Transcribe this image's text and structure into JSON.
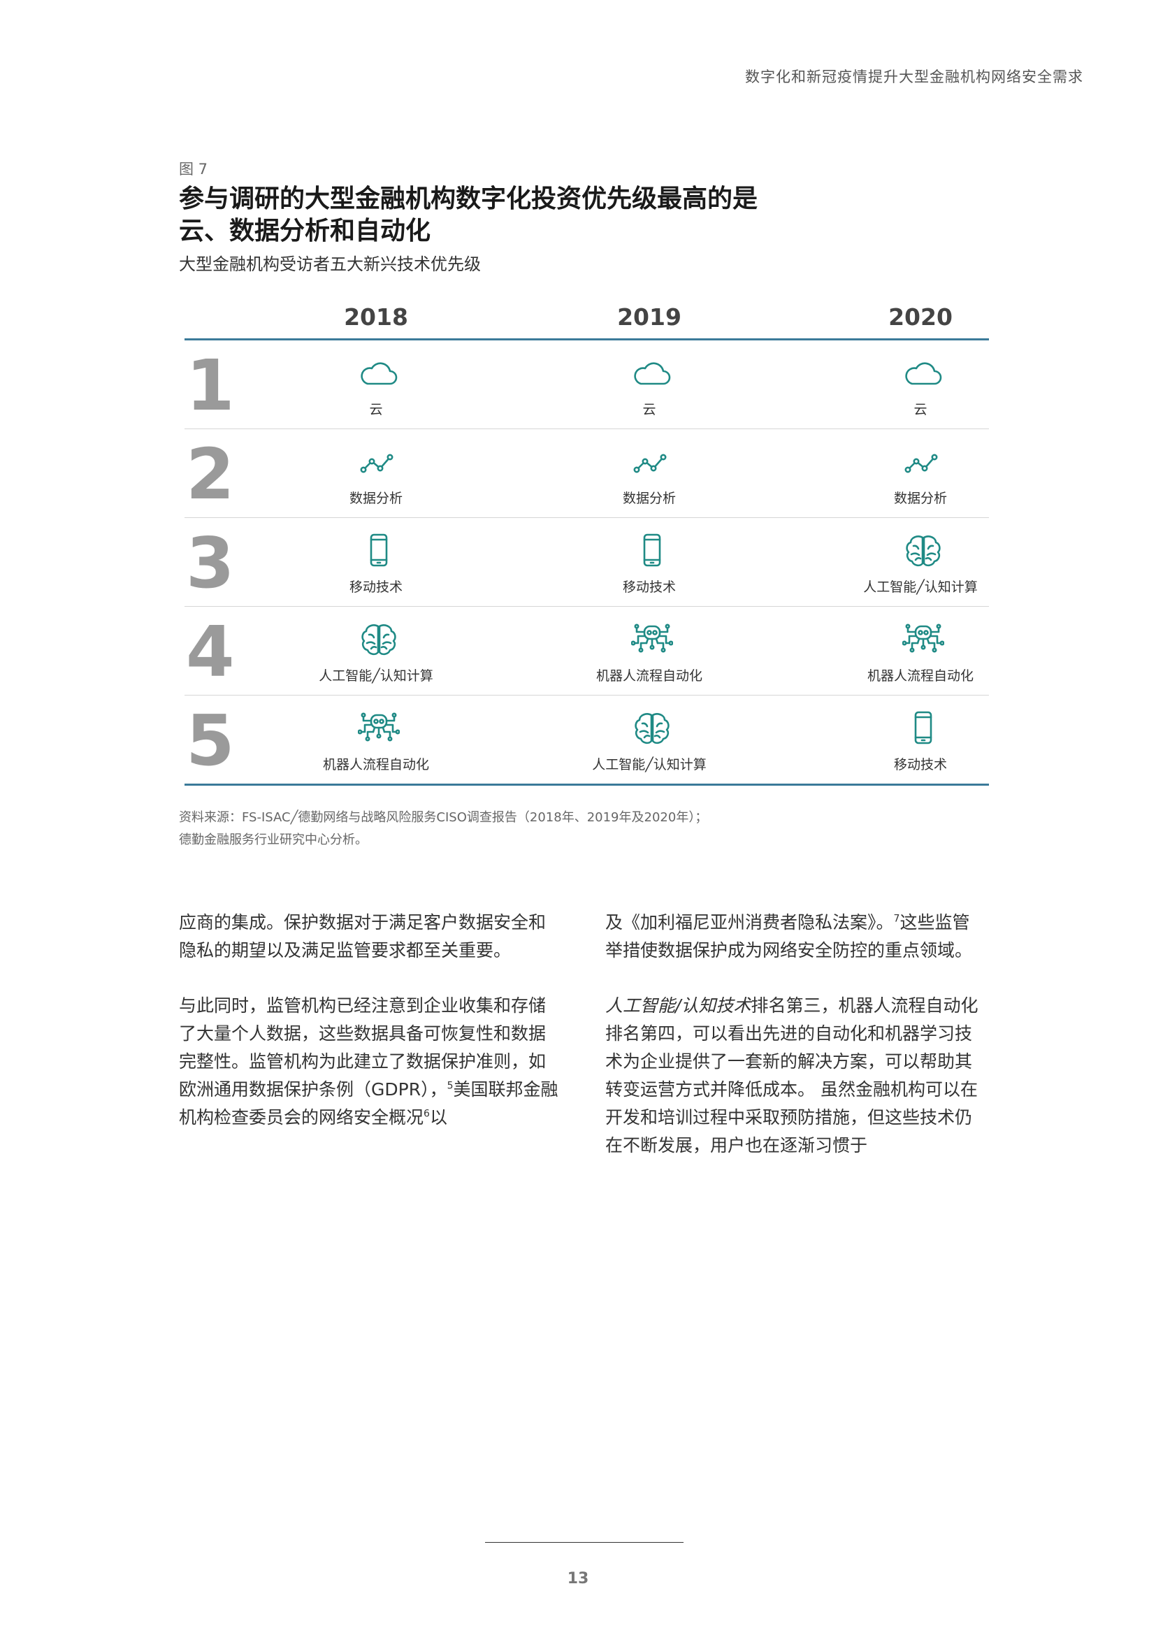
{
  "running_header": "数字化和新冠疫情提升大型金融机构网络安全需求",
  "figure": {
    "label": "图 7",
    "title_line1": "参与调研的大型金融机构数字化投资优先级最高的是",
    "title_line2": "云、数据分析和自动化",
    "subtitle": "大型金融机构受访者五大新兴技术优先级",
    "years": [
      "2018",
      "2019",
      "2020"
    ],
    "rows": [
      {
        "rank": "1",
        "cells": [
          {
            "icon": "cloud-icon",
            "label": "云"
          },
          {
            "icon": "cloud-icon",
            "label": "云"
          },
          {
            "icon": "cloud-icon",
            "label": "云"
          }
        ]
      },
      {
        "rank": "2",
        "cells": [
          {
            "icon": "line-chart-icon",
            "label": "数据分析"
          },
          {
            "icon": "line-chart-icon",
            "label": "数据分析"
          },
          {
            "icon": "line-chart-icon",
            "label": "数据分析"
          }
        ]
      },
      {
        "rank": "3",
        "cells": [
          {
            "icon": "mobile-phone-icon",
            "label": "移动技术"
          },
          {
            "icon": "mobile-phone-icon",
            "label": "移动技术"
          },
          {
            "icon": "brain-icon",
            "label": "人工智能╱认知计算"
          }
        ]
      },
      {
        "rank": "4",
        "cells": [
          {
            "icon": "brain-icon",
            "label": "人工智能╱认知计算"
          },
          {
            "icon": "robot-icon",
            "label": "机器人流程自动化"
          },
          {
            "icon": "robot-icon",
            "label": "机器人流程自动化"
          }
        ]
      },
      {
        "rank": "5",
        "cells": [
          {
            "icon": "robot-icon",
            "label": "机器人流程自动化"
          },
          {
            "icon": "brain-icon",
            "label": "人工智能╱认知计算"
          },
          {
            "icon": "mobile-phone-icon",
            "label": "移动技术"
          }
        ]
      }
    ],
    "source_line1": "资料来源：FS-ISAC╱德勤网络与战略风险服务CISO调查报告（2018年、2019年及2020年）；",
    "source_line2": "德勤金融服务行业研究中心分析。"
  },
  "body": {
    "left_p1": "应商的集成。保护数据对于满足客户数据安全和隐私的期望以及满足监管要求都至关重要。",
    "left_p2_a": "与此同时，监管机构已经注意到企业收集和存储了大量个人数据，这些数据具备可恢复性和数据完整性。监管机构为此建立了数据保护准则，如欧洲通用数据保护条例（GDPR），",
    "left_p2_sup1": "5",
    "left_p2_b": "美国联邦金融机构检查委员会的网络安全概况",
    "left_p2_sup2": "6",
    "left_p2_c": "以",
    "right_p1_a": "及《加利福尼亚州消费者隐私法案》。",
    "right_p1_sup": "7",
    "right_p1_b": "这些监管举措使数据保护成为网络安全防控的重点领域。",
    "right_p2_em": "人工智能/认知技术",
    "right_p2_rest": "排名第三，机器人流程自动化排名第四，可以看出先进的自动化和机器学习技术为企业提供了一套新的解决方案，可以帮助其转变运营方式并降低成本。 虽然金融机构可以在开发和培训过程中采取预防措施，但这些技术仍在不断发展，用户也在逐渐习惯于"
  },
  "page_number": "13",
  "colors": {
    "icon": "#1f8a85",
    "rule": "#3b7a99",
    "rank_number": "#9a9a9a"
  }
}
